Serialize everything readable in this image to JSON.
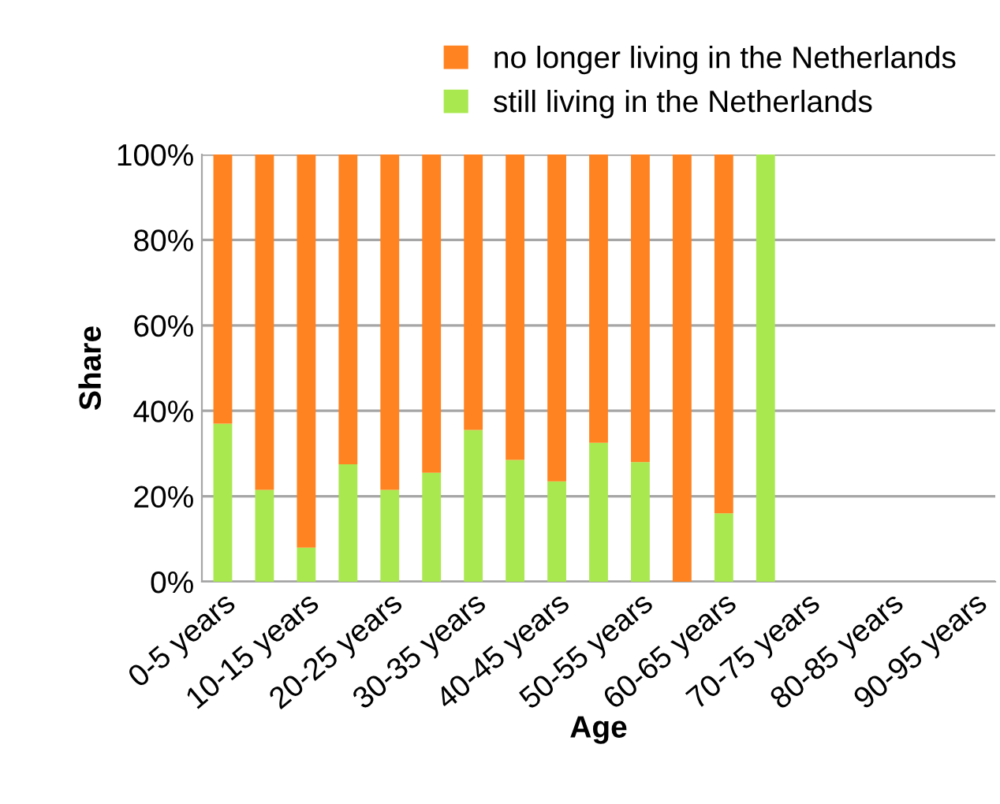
{
  "chart_data": {
    "type": "bar",
    "stacked": true,
    "xlabel": "Age",
    "ylabel": "Share",
    "categories": [
      "0-5 years",
      null,
      "10-15 years",
      null,
      "20-25 years",
      null,
      "30-35 years",
      null,
      "40-45 years",
      null,
      "50-55 years",
      null,
      "60-65 years",
      null,
      "70-75 years",
      null,
      "80-85 years",
      null,
      "90-95 years"
    ],
    "series": [
      {
        "name": "still living in the Netherlands",
        "color": "#a9e84f",
        "values": [
          37,
          21.5,
          8,
          27.5,
          21.5,
          25.5,
          35.5,
          28.5,
          23.5,
          32.5,
          28,
          0,
          16,
          100,
          null,
          null,
          null,
          null,
          null
        ]
      },
      {
        "name": "no longer living in the Netherlands",
        "color": "#ff8320",
        "values": [
          63,
          78.5,
          92,
          72.5,
          78.5,
          74.5,
          64.5,
          71.5,
          76.5,
          67.5,
          72,
          100,
          84,
          0,
          null,
          null,
          null,
          null,
          null
        ]
      }
    ],
    "ylim": [
      0,
      100
    ],
    "yticks": [
      {
        "value": 0,
        "label": "0%"
      },
      {
        "value": 20,
        "label": "20%"
      },
      {
        "value": 40,
        "label": "40%"
      },
      {
        "value": 60,
        "label": "60%"
      },
      {
        "value": 80,
        "label": "80%"
      },
      {
        "value": 100,
        "label": "100%"
      }
    ],
    "grid": "y",
    "legend": "top"
  }
}
